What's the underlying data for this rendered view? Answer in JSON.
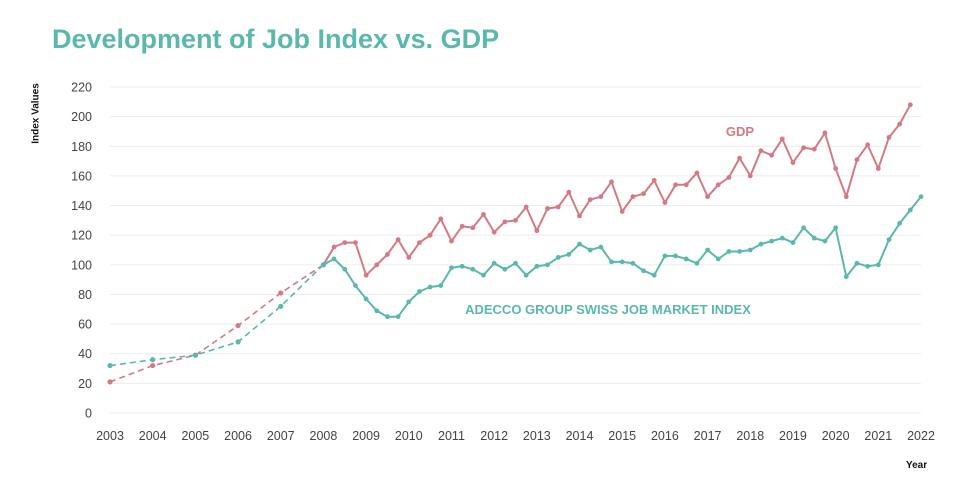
{
  "chart_data": {
    "type": "line",
    "title": "Development of Job Index vs. GDP",
    "ylabel": "Index Values",
    "xlabel": "Year",
    "ylim": [
      0,
      220
    ],
    "xlim": [
      2003,
      2022
    ],
    "yticks": [
      "0",
      "20",
      "40",
      "60",
      "80",
      "100",
      "120",
      "140",
      "160",
      "180",
      "200",
      "220"
    ],
    "xticks": [
      "2003",
      "2004",
      "2005",
      "2006",
      "2007",
      "2008",
      "2009",
      "2010",
      "2011",
      "2012",
      "2013",
      "2014",
      "2015",
      "2016",
      "2017",
      "2018",
      "2019",
      "2020",
      "2021",
      "2022"
    ],
    "grid": "horizontal",
    "colors": {
      "gdp": "#d47a85",
      "job": "#5ab8ac",
      "title": "#5ab8ac"
    },
    "series": [
      {
        "name": "GDP",
        "annual_x": [
          2003,
          2004,
          2005,
          2006,
          2007,
          2008
        ],
        "annual_y": [
          21,
          32,
          39,
          59,
          81,
          100
        ],
        "x": [
          2008.0,
          2008.25,
          2008.5,
          2008.75,
          2009.0,
          2009.25,
          2009.5,
          2009.75,
          2010.0,
          2010.25,
          2010.5,
          2010.75,
          2011.0,
          2011.25,
          2011.5,
          2011.75,
          2012.0,
          2012.25,
          2012.5,
          2012.75,
          2013.0,
          2013.25,
          2013.5,
          2013.75,
          2014.0,
          2014.25,
          2014.5,
          2014.75,
          2015.0,
          2015.25,
          2015.5,
          2015.75,
          2016.0,
          2016.25,
          2016.5,
          2016.75,
          2017.0,
          2017.25,
          2017.5,
          2017.75,
          2018.0,
          2018.25,
          2018.5,
          2018.75,
          2019.0,
          2019.25,
          2019.5,
          2019.75,
          2020.0,
          2020.25,
          2020.5,
          2020.75,
          2021.0,
          2021.25,
          2021.5,
          2021.75
        ],
        "y": [
          100,
          112,
          115,
          115,
          93,
          100,
          107,
          117,
          105,
          115,
          120,
          131,
          116,
          126,
          125,
          134,
          122,
          129,
          130,
          139,
          123,
          138,
          139,
          149,
          133,
          144,
          146,
          156,
          136,
          146,
          148,
          157,
          142,
          154,
          154,
          162,
          146,
          154,
          159,
          172,
          160,
          177,
          174,
          185,
          169,
          179,
          178,
          189,
          165,
          146,
          171,
          181,
          165,
          186,
          195,
          208
        ]
      },
      {
        "name": "ADECCO GROUP SWISS JOB MARKET INDEX",
        "annual_x": [
          2003,
          2004,
          2005,
          2006,
          2007,
          2008
        ],
        "annual_y": [
          32,
          36,
          39,
          48,
          72,
          100
        ],
        "x": [
          2008.0,
          2008.25,
          2008.5,
          2008.75,
          2009.0,
          2009.25,
          2009.5,
          2009.75,
          2010.0,
          2010.25,
          2010.5,
          2010.75,
          2011.0,
          2011.25,
          2011.5,
          2011.75,
          2012.0,
          2012.25,
          2012.5,
          2012.75,
          2013.0,
          2013.25,
          2013.5,
          2013.75,
          2014.0,
          2014.25,
          2014.5,
          2014.75,
          2015.0,
          2015.25,
          2015.5,
          2015.75,
          2016.0,
          2016.25,
          2016.5,
          2016.75,
          2017.0,
          2017.25,
          2017.5,
          2017.75,
          2018.0,
          2018.25,
          2018.5,
          2018.75,
          2019.0,
          2019.25,
          2019.5,
          2019.75,
          2020.0,
          2020.25,
          2020.5,
          2020.75,
          2021.0,
          2021.25,
          2021.5,
          2021.75,
          2022.0
        ],
        "y": [
          100,
          104,
          97,
          86,
          77,
          69,
          65,
          65,
          75,
          82,
          85,
          86,
          98,
          99,
          97,
          93,
          101,
          97,
          101,
          93,
          99,
          100,
          105,
          107,
          114,
          110,
          112,
          102,
          102,
          101,
          96,
          93,
          106,
          106,
          104,
          101,
          110,
          104,
          109,
          109,
          110,
          114,
          116,
          118,
          115,
          125,
          118,
          116,
          125,
          92,
          101,
          99,
          100,
          117,
          128,
          137,
          146
        ]
      }
    ]
  }
}
